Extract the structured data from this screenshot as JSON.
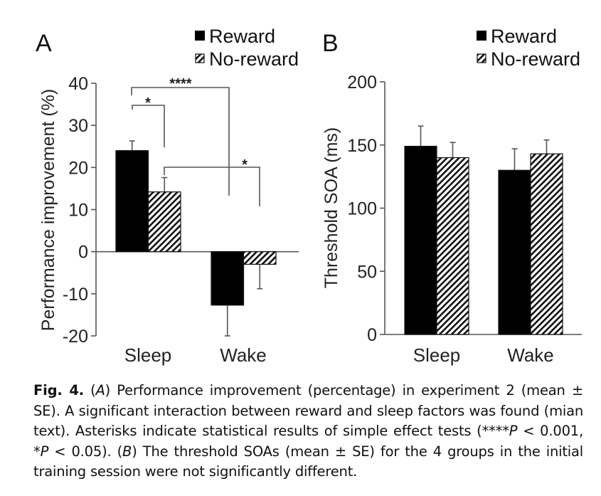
{
  "chart_data": [
    {
      "panel": "A",
      "type": "bar",
      "categories": [
        "Sleep",
        "Wake"
      ],
      "series": [
        {
          "name": "Reward",
          "pattern": "solid",
          "values": [
            24.0,
            -12.7
          ],
          "se_ends": [
            26.3,
            -20.0
          ]
        },
        {
          "name": "No-reward",
          "pattern": "hatched",
          "values": [
            14.2,
            -3.0
          ],
          "se_ends": [
            17.6,
            -8.8
          ]
        }
      ],
      "title": "",
      "xlabel": "",
      "ylabel": "Performance improvement (%)",
      "ylim": [
        -20,
        40
      ],
      "yticks": [
        40,
        30,
        20,
        10,
        0,
        -10,
        -20
      ],
      "ytick_labels": [
        "40",
        "30",
        "20",
        "10",
        "0",
        "-10",
        "-20"
      ],
      "grid": false,
      "legend": {
        "position": "top-right",
        "entries": [
          "Reward",
          "No-reward"
        ]
      },
      "annotations": [
        {
          "label": "****",
          "from": "Sleep/Reward",
          "to": "Wake/Reward"
        },
        {
          "label": "*",
          "from": "Sleep/Reward",
          "to": "Sleep/No-reward"
        },
        {
          "label": "*",
          "from": "Sleep/No-reward",
          "to": "Wake/No-reward"
        }
      ]
    },
    {
      "panel": "B",
      "type": "bar",
      "categories": [
        "Sleep",
        "Wake"
      ],
      "series": [
        {
          "name": "Reward",
          "pattern": "solid",
          "values": [
            149,
            130
          ],
          "se_ends": [
            165,
            147
          ]
        },
        {
          "name": "No-reward",
          "pattern": "hatched",
          "values": [
            140,
            143
          ],
          "se_ends": [
            152,
            154
          ]
        }
      ],
      "title": "",
      "xlabel": "",
      "ylabel": "Threshold SOA (ms)",
      "ylim": [
        0,
        200
      ],
      "yticks": [
        200,
        150,
        100,
        50,
        0
      ],
      "ytick_labels": [
        "200",
        "150",
        "100",
        "50",
        "0"
      ],
      "grid": false,
      "legend": {
        "position": "top-right",
        "entries": [
          "Reward",
          "No-reward"
        ]
      },
      "annotations": []
    }
  ],
  "panels": {
    "A": {
      "label": "A",
      "legend": [
        "Reward",
        "No-reward"
      ],
      "ylabel": "Performance improvement (%)",
      "categories": [
        "Sleep",
        "Wake"
      ],
      "sig_labels": [
        "****",
        "*",
        "*"
      ]
    },
    "B": {
      "label": "B",
      "legend": [
        "Reward",
        "No-reward"
      ],
      "ylabel": "Threshold SOA (ms)",
      "categories": [
        "Sleep",
        "Wake"
      ]
    }
  },
  "caption": {
    "fig_label": "Fig. 4.",
    "parts": [
      {
        "t": " (",
        "s": "n"
      },
      {
        "t": "A",
        "s": "i"
      },
      {
        "t": ") Performance improvement (percentage) in experiment 2 (mean ± SE). A significant interaction between reward and sleep factors was found (mian text). Asterisks indicate statistical results of simple effect tests (****",
        "s": "n"
      },
      {
        "t": "P",
        "s": "i"
      },
      {
        "t": " < 0.001, *",
        "s": "n"
      },
      {
        "t": "P",
        "s": "i"
      },
      {
        "t": " < 0.05). (",
        "s": "n"
      },
      {
        "t": "B",
        "s": "i"
      },
      {
        "t": ") The threshold SOAs (mean ± SE) for the 4 groups in the initial training session were not significantly different.",
        "s": "n"
      }
    ]
  },
  "colors": {
    "bar_solid": "#000000",
    "axis": "#555555",
    "text": "#111111"
  }
}
